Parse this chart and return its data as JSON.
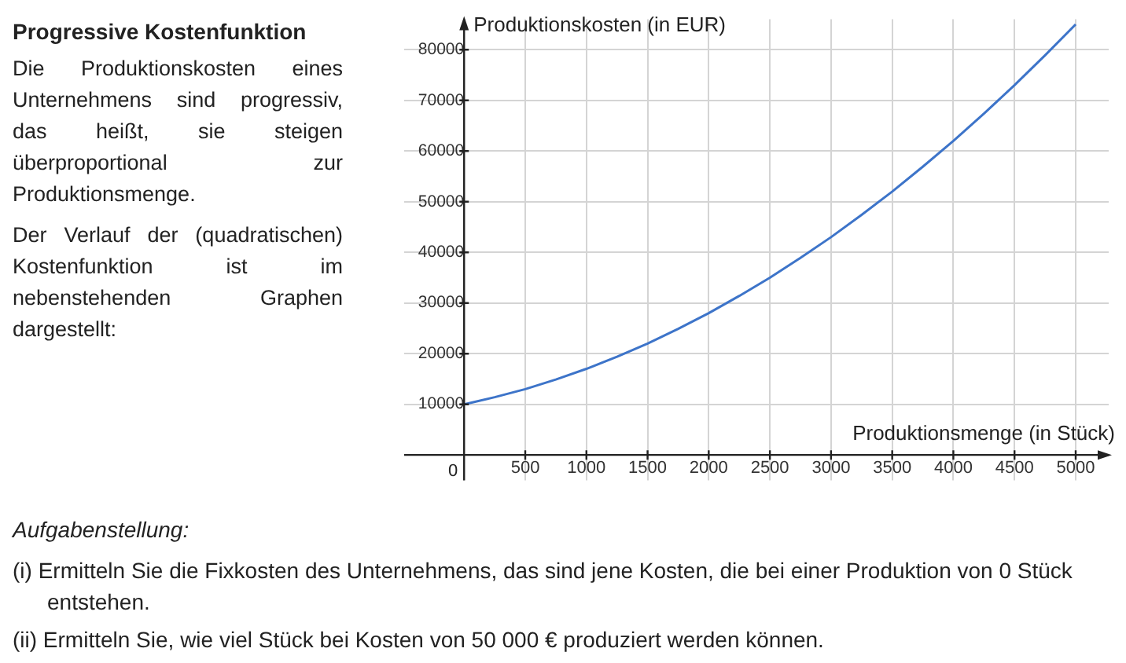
{
  "chart_data": {
    "type": "line",
    "title": "Progressive Kostenfunktion",
    "annotations": [
      "Die Produktionskosten eines Unternehmens sind progressiv, das heißt, sie steigen überproportional zur Produktionsmenge.",
      "Der Verlauf der (quadratischen) Kostenfunktion ist im nebenstehenden Graphen dargestellt:",
      "Aufgabenstellung:",
      "(i) Ermitteln Sie die Fixkosten des Unternehmens, das sind jene Kosten, die bei einer Produktion von 0 Stück entstehen.",
      "(ii) Ermitteln Sie, wie viel Stück bei Kosten von 50 000 € produziert werden können."
    ],
    "xlabel": "Produktionsmenge (in Stück)",
    "ylabel": "Produktionskosten (in EUR)",
    "x": [
      0,
      250,
      500,
      750,
      1000,
      1250,
      1500,
      1750,
      2000,
      2250,
      2500,
      2750,
      3000,
      3250,
      3500,
      3750,
      4000,
      4250,
      4500,
      4750,
      5000
    ],
    "series": [
      {
        "color": "#3d74c9",
        "values": [
          10000,
          11400,
          13000,
          14900,
          17000,
          19400,
          22000,
          24900,
          28000,
          31400,
          35000,
          38900,
          43000,
          47400,
          52000,
          56900,
          62000,
          67400,
          73000,
          78900,
          85000
        ]
      }
    ],
    "xlim": [
      -490,
      5270
    ],
    "ylim": [
      -5000,
      86000
    ],
    "xticks": [
      {
        "value": 0,
        "label": "0"
      },
      500,
      1000,
      1500,
      2000,
      2500,
      3000,
      3500,
      4000,
      4500,
      5000
    ],
    "yticks": [
      10000,
      20000,
      30000,
      40000,
      50000,
      60000,
      70000,
      80000
    ],
    "grid": true,
    "legend": false,
    "marker": "none",
    "line_style": "solid"
  }
}
